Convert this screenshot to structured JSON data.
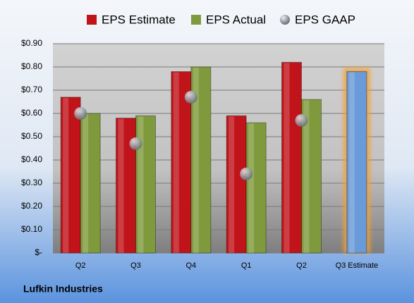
{
  "chart_data": {
    "type": "bar",
    "footer": "Lufkin Industries",
    "categories": [
      "Q2",
      "Q3",
      "Q4",
      "Q1",
      "Q2",
      "Q3 Estimate"
    ],
    "series": [
      {
        "name": "EPS Estimate",
        "color": "#c0141a",
        "values": [
          0.67,
          0.58,
          0.78,
          0.59,
          0.82,
          0.78
        ],
        "highlight": {
          "index": 5,
          "color": "#6a9ad8"
        }
      },
      {
        "name": "EPS Actual",
        "color": "#7f9a3c",
        "values": [
          0.6,
          0.59,
          0.8,
          0.56,
          0.66,
          null
        ]
      },
      {
        "name": "EPS GAAP",
        "color": "#9aa0a8",
        "marker": "sphere",
        "values": [
          0.6,
          0.47,
          0.67,
          0.34,
          0.57,
          null
        ]
      }
    ],
    "ylim": [
      0,
      0.9
    ],
    "yticks": [
      {
        "value": 0,
        "label": "$-"
      },
      {
        "value": 0.1,
        "label": "$0.10"
      },
      {
        "value": 0.2,
        "label": "$0.20"
      },
      {
        "value": 0.3,
        "label": "$0.30"
      },
      {
        "value": 0.4,
        "label": "$0.40"
      },
      {
        "value": 0.5,
        "label": "$0.50"
      },
      {
        "value": 0.6,
        "label": "$0.60"
      },
      {
        "value": 0.7,
        "label": "$0.70"
      },
      {
        "value": 0.8,
        "label": "$0.80"
      },
      {
        "value": 0.9,
        "label": "$0.90"
      }
    ],
    "grid": true
  }
}
